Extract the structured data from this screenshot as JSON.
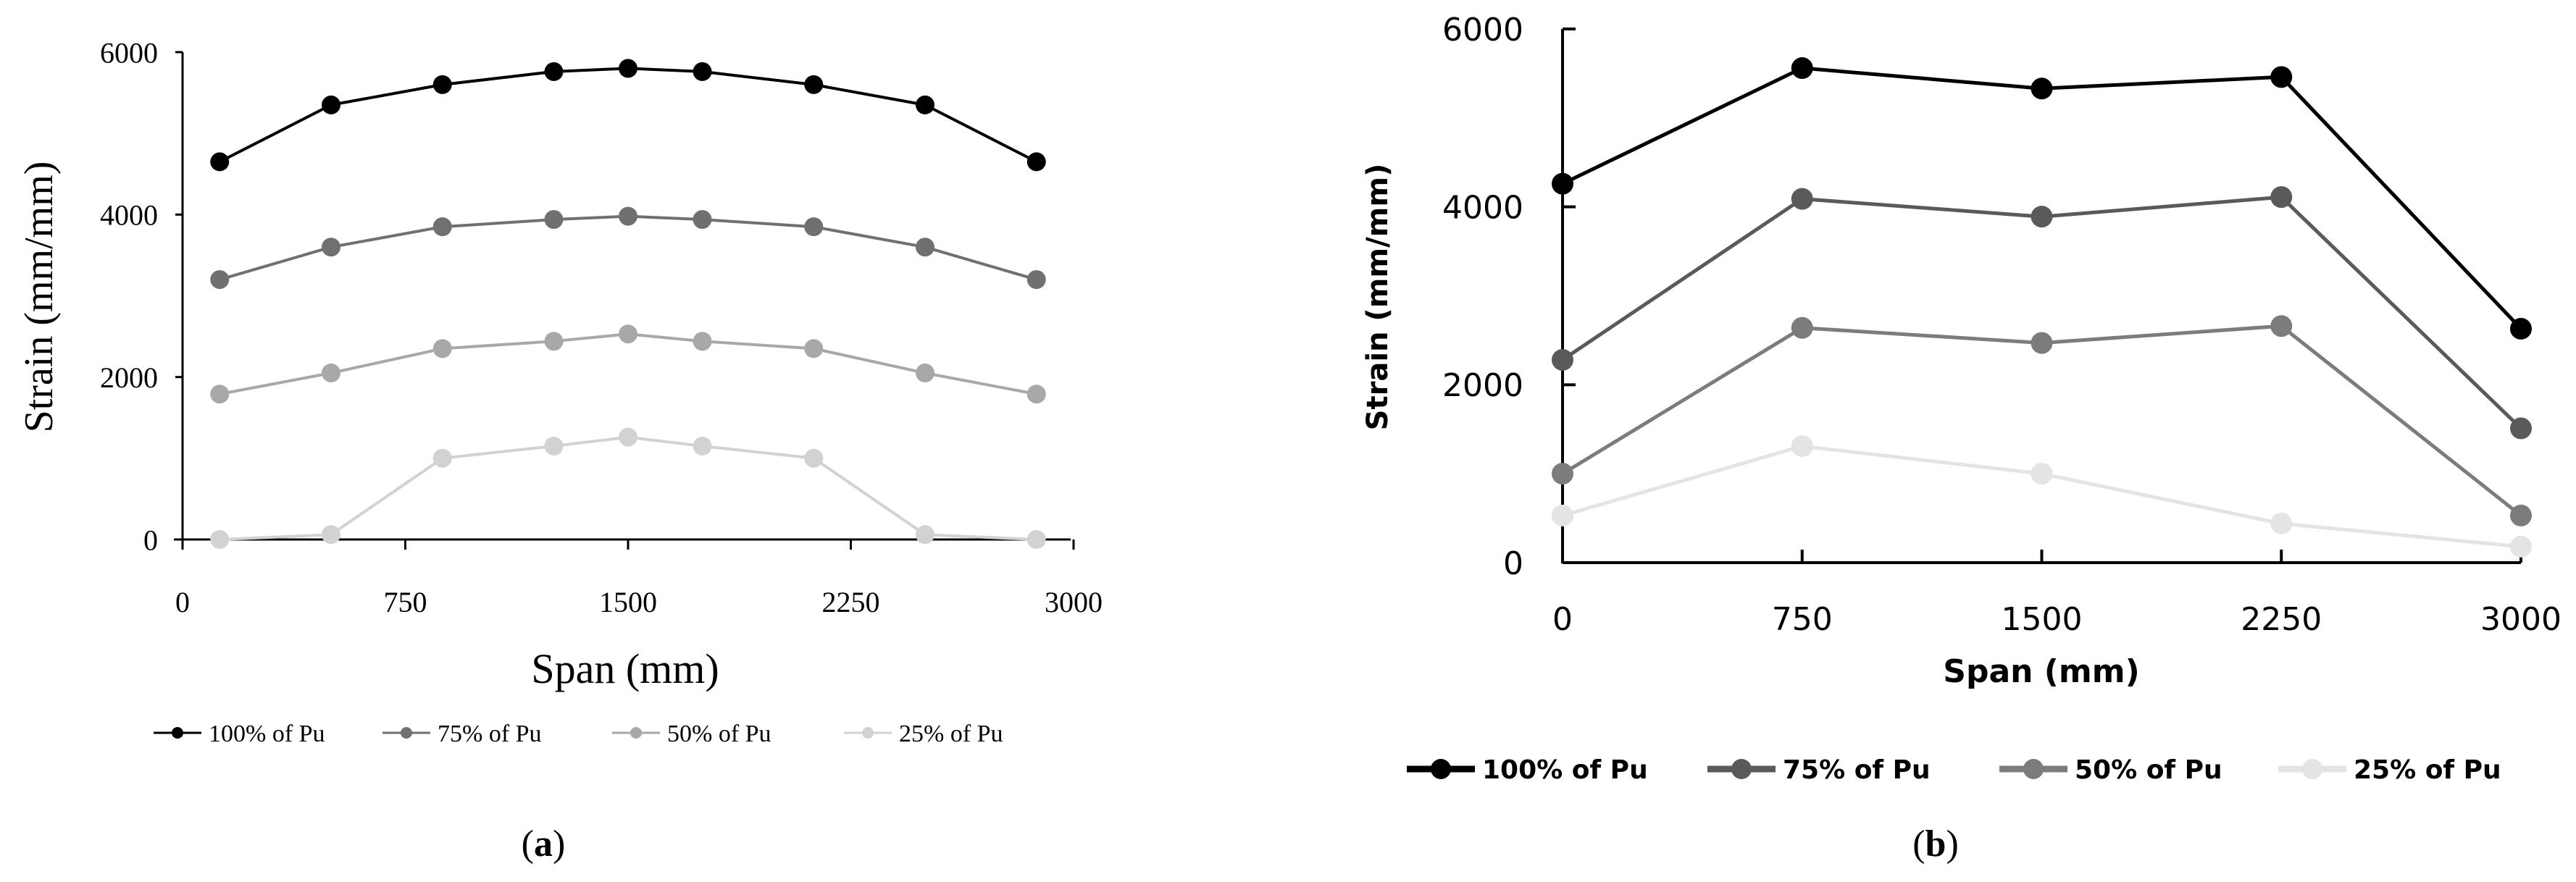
{
  "chart_data": [
    {
      "type": "line",
      "panel_label": "(a)",
      "panel_letter": "a",
      "xlabel": "Span (mm)",
      "ylabel": "Strain (mm/mm)",
      "xlim": [
        0,
        3000
      ],
      "ylim": [
        0,
        6000
      ],
      "xticks": [
        0,
        750,
        1500,
        2250,
        3000
      ],
      "yticks": [
        0,
        2000,
        4000,
        6000
      ],
      "grid": false,
      "legend_position": "bottom",
      "series": [
        {
          "name": "100% of Pu",
          "color": "#000000",
          "x": [
            125,
            500,
            875,
            1250,
            1500,
            1750,
            2125,
            2500,
            2875
          ],
          "y": [
            4650,
            5350,
            5600,
            5760,
            5800,
            5760,
            5600,
            5350,
            4650
          ]
        },
        {
          "name": "75% of Pu",
          "color": "#707070",
          "x": [
            125,
            500,
            875,
            1250,
            1500,
            1750,
            2125,
            2500,
            2875
          ],
          "y": [
            3200,
            3600,
            3850,
            3940,
            3980,
            3940,
            3850,
            3600,
            3200
          ]
        },
        {
          "name": "50% of Pu",
          "color": "#a8a8a8",
          "x": [
            125,
            500,
            875,
            1250,
            1500,
            1750,
            2125,
            2500,
            2875
          ],
          "y": [
            1790,
            2050,
            2350,
            2440,
            2530,
            2440,
            2350,
            2050,
            1790
          ]
        },
        {
          "name": "25% of Pu",
          "color": "#d2d2d2",
          "x": [
            125,
            500,
            875,
            1250,
            1500,
            1750,
            2125,
            2500,
            2875
          ],
          "y": [
            0,
            60,
            1000,
            1150,
            1260,
            1150,
            1000,
            60,
            0
          ]
        }
      ]
    },
    {
      "type": "line",
      "panel_label": "(b)",
      "panel_letter": "b",
      "xlabel": "Span (mm)",
      "ylabel": "Strain (mm/mm)",
      "xlim": [
        0,
        3000
      ],
      "ylim": [
        0,
        6000
      ],
      "xticks": [
        0,
        750,
        1500,
        2250,
        3000
      ],
      "yticks": [
        0,
        2000,
        4000,
        6000
      ],
      "grid": false,
      "legend_position": "bottom",
      "series": [
        {
          "name": "100% of Pu",
          "color": "#000000",
          "x": [
            0,
            750,
            1500,
            2250,
            3000
          ],
          "y": [
            4260,
            5560,
            5330,
            5460,
            2630
          ]
        },
        {
          "name": "75% of Pu",
          "color": "#5a5a5a",
          "x": [
            0,
            750,
            1500,
            2250,
            3000
          ],
          "y": [
            2280,
            4090,
            3890,
            4110,
            1510
          ]
        },
        {
          "name": "50% of Pu",
          "color": "#7c7c7c",
          "x": [
            0,
            750,
            1500,
            2250,
            3000
          ],
          "y": [
            1000,
            2640,
            2470,
            2660,
            530
          ]
        },
        {
          "name": "25% of Pu",
          "color": "#e4e4e4",
          "x": [
            0,
            750,
            1500,
            2250,
            3000
          ],
          "y": [
            530,
            1310,
            1000,
            440,
            180
          ]
        }
      ]
    }
  ]
}
